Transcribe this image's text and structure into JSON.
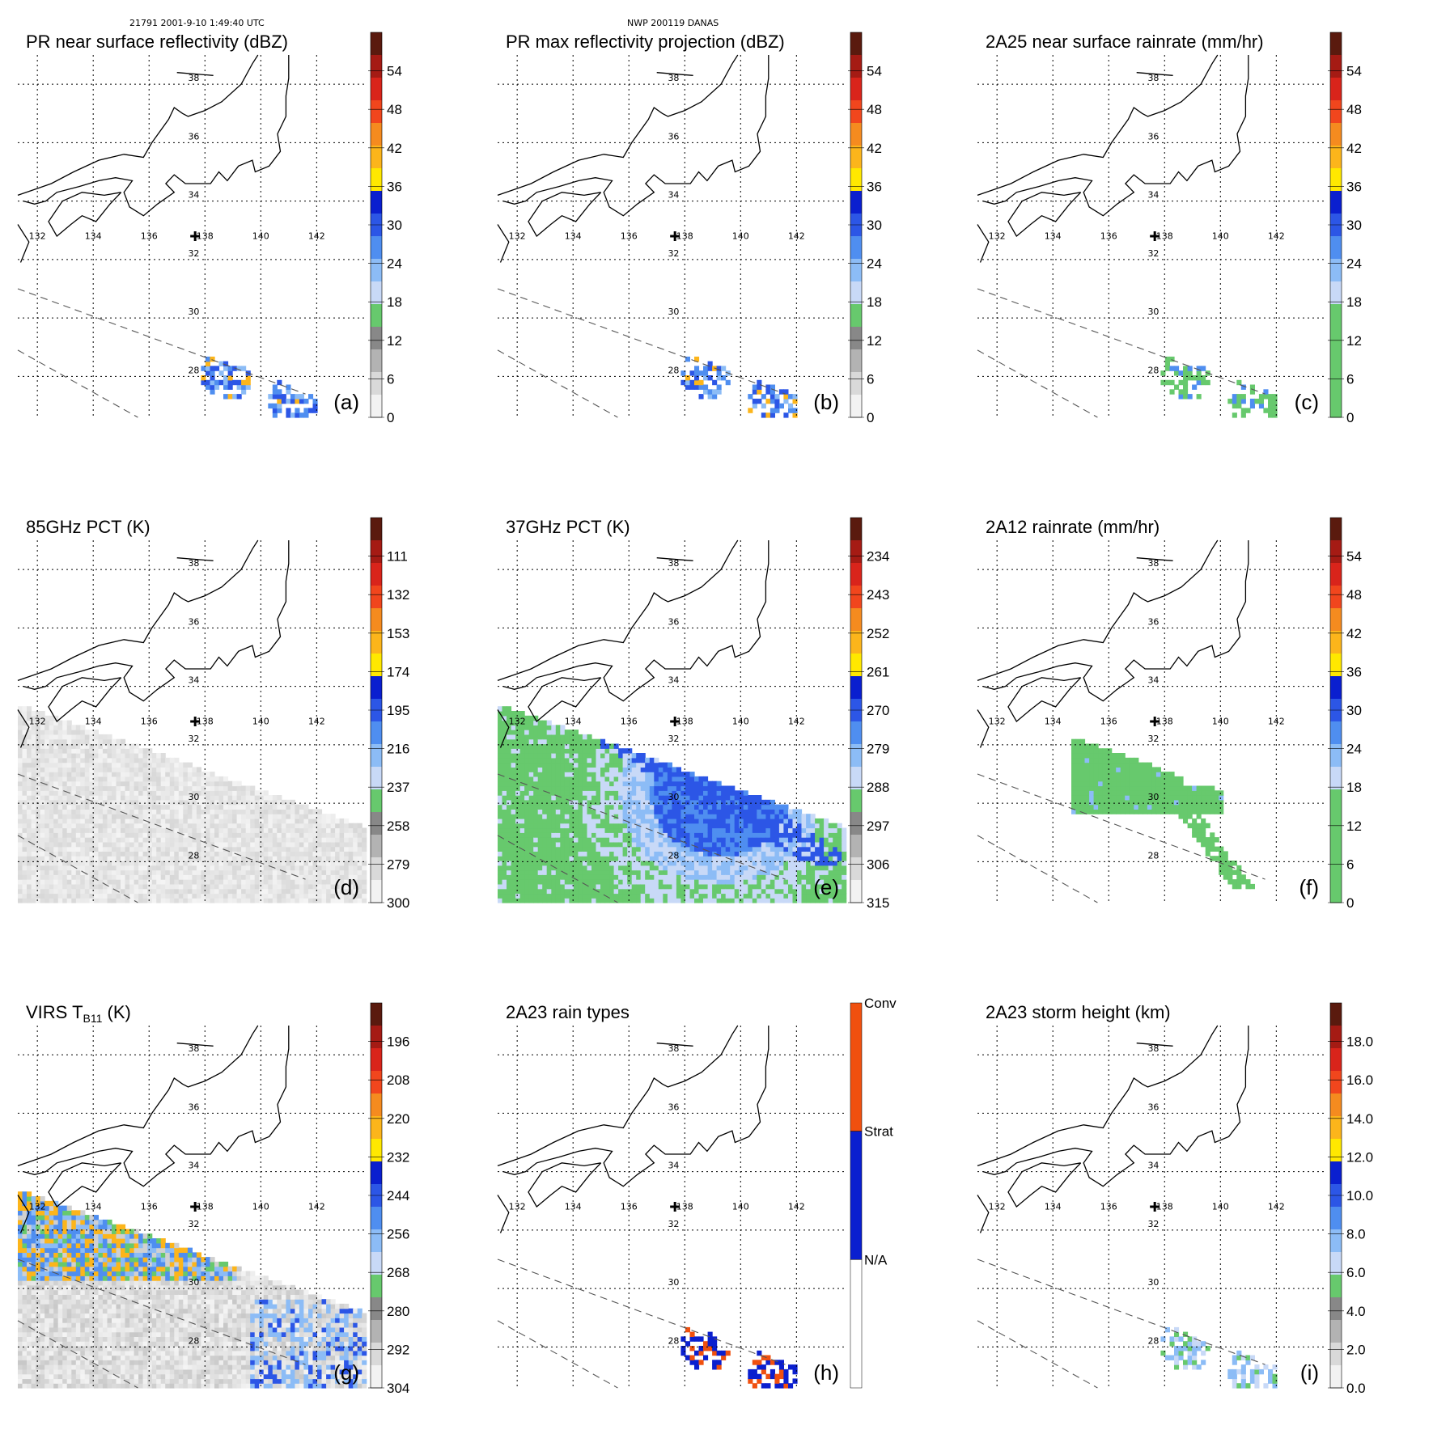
{
  "header": {
    "left": "21791 2001-9-10 1:49:40 UTC",
    "center": "NWP 200119 DANAS"
  },
  "colors": {
    "coast": "#000000",
    "grid": "#000000",
    "swath": "#555555"
  },
  "chart_data": [
    {
      "type": "heatmap",
      "id": "a",
      "title": "PR near surface reflectivity (dBZ)",
      "panel_label": "(a)",
      "colorbar": {
        "labels": [
          "54",
          "48",
          "42",
          "36",
          "30",
          "24",
          "18",
          "12",
          "6",
          "0"
        ],
        "colors": [
          "#5a1a0e",
          "#a51b14",
          "#d9241b",
          "#f1461d",
          "#f58b1f",
          "#fcb51b",
          "#ffe800",
          "#0a1fcf",
          "#2c56e6",
          "#4f8ef0",
          "#8cbcf6",
          "#c8d9f7",
          "#67c96d",
          "#888888",
          "#b3b3b3",
          "#d9d9d9",
          "#f2f2f2"
        ]
      },
      "lat_labels": [
        "38",
        "36",
        "34",
        "32",
        "30",
        "28"
      ],
      "lon_labels": [
        "132",
        "134",
        "136",
        "138",
        "140",
        "142"
      ],
      "field": "pr",
      "swath": "narrow"
    },
    {
      "type": "heatmap",
      "id": "b",
      "title": "PR max reflectivity projection (dBZ)",
      "panel_label": "(b)",
      "colorbar": {
        "labels": [
          "54",
          "48",
          "42",
          "36",
          "30",
          "24",
          "18",
          "12",
          "6",
          "0"
        ],
        "colors": [
          "#5a1a0e",
          "#a51b14",
          "#d9241b",
          "#f1461d",
          "#f58b1f",
          "#fcb51b",
          "#ffe800",
          "#0a1fcf",
          "#2c56e6",
          "#4f8ef0",
          "#8cbcf6",
          "#c8d9f7",
          "#67c96d",
          "#888888",
          "#b3b3b3",
          "#d9d9d9",
          "#f2f2f2"
        ]
      },
      "lat_labels": [
        "38",
        "36",
        "34",
        "32",
        "30",
        "28"
      ],
      "lon_labels": [
        "132",
        "134",
        "136",
        "138",
        "140",
        "142"
      ],
      "field": "pr",
      "swath": "narrow"
    },
    {
      "type": "heatmap",
      "id": "c",
      "title": "2A25 near surface rainrate (mm/hr)",
      "panel_label": "(c)",
      "colorbar": {
        "labels": [
          "54",
          "48",
          "42",
          "36",
          "30",
          "24",
          "18",
          "12",
          "6",
          "0"
        ],
        "colors": [
          "#5a1a0e",
          "#a51b14",
          "#d9241b",
          "#f1461d",
          "#f58b1f",
          "#fcb51b",
          "#ffe800",
          "#0a1fcf",
          "#2c56e6",
          "#4f8ef0",
          "#8cbcf6",
          "#c8d9f7",
          "#67c96d",
          "#67c96d",
          "#67c96d",
          "#67c96d",
          "#67c96d"
        ]
      },
      "lat_labels": [
        "38",
        "36",
        "34",
        "32",
        "30",
        "28"
      ],
      "lon_labels": [
        "132",
        "134",
        "136",
        "138",
        "140",
        "142"
      ],
      "field": "rain",
      "swath": "narrow"
    },
    {
      "type": "heatmap",
      "id": "d",
      "title": "85GHz PCT (K)",
      "panel_label": "(d)",
      "colorbar": {
        "labels": [
          "111",
          "132",
          "153",
          "174",
          "195",
          "216",
          "237",
          "258",
          "279",
          "300"
        ],
        "colors": [
          "#5a1a0e",
          "#a51b14",
          "#d9241b",
          "#f1461d",
          "#f58b1f",
          "#fcb51b",
          "#ffe800",
          "#0a1fcf",
          "#2c56e6",
          "#4f8ef0",
          "#8cbcf6",
          "#c8d9f7",
          "#67c96d",
          "#888888",
          "#b3b3b3",
          "#d9d9d9",
          "#f2f2f2"
        ]
      },
      "lat_labels": [
        "38",
        "36",
        "34",
        "32",
        "30",
        "28"
      ],
      "lon_labels": [
        "132",
        "134",
        "136",
        "138",
        "140",
        "142"
      ],
      "field": "pct85",
      "swath": "wide"
    },
    {
      "type": "heatmap",
      "id": "e",
      "title": "37GHz PCT (K)",
      "panel_label": "(e)",
      "colorbar": {
        "labels": [
          "234",
          "243",
          "252",
          "261",
          "270",
          "279",
          "288",
          "297",
          "306",
          "315"
        ],
        "colors": [
          "#5a1a0e",
          "#a51b14",
          "#d9241b",
          "#f1461d",
          "#f58b1f",
          "#fcb51b",
          "#ffe800",
          "#0a1fcf",
          "#2c56e6",
          "#4f8ef0",
          "#8cbcf6",
          "#c8d9f7",
          "#67c96d",
          "#888888",
          "#b3b3b3",
          "#d9d9d9",
          "#f2f2f2"
        ]
      },
      "lat_labels": [
        "38",
        "36",
        "34",
        "32",
        "30",
        "28"
      ],
      "lon_labels": [
        "132",
        "134",
        "136",
        "138",
        "140",
        "142"
      ],
      "field": "pct37",
      "swath": "wide"
    },
    {
      "type": "heatmap",
      "id": "f",
      "title": "2A12 rainrate (mm/hr)",
      "panel_label": "(f)",
      "colorbar": {
        "labels": [
          "54",
          "48",
          "42",
          "36",
          "30",
          "24",
          "18",
          "12",
          "6",
          "0"
        ],
        "colors": [
          "#5a1a0e",
          "#a51b14",
          "#d9241b",
          "#f1461d",
          "#f58b1f",
          "#fcb51b",
          "#ffe800",
          "#0a1fcf",
          "#2c56e6",
          "#4f8ef0",
          "#8cbcf6",
          "#c8d9f7",
          "#67c96d",
          "#67c96d",
          "#67c96d",
          "#67c96d",
          "#67c96d"
        ]
      },
      "lat_labels": [
        "38",
        "36",
        "34",
        "32",
        "30",
        "28"
      ],
      "lon_labels": [
        "132",
        "134",
        "136",
        "138",
        "140",
        "142"
      ],
      "field": "tmi_rain",
      "swath": "wide"
    },
    {
      "type": "heatmap",
      "id": "g",
      "title": "VIRS T",
      "title_sub": "B11",
      "title_tail": " (K)",
      "panel_label": "(g)",
      "colorbar": {
        "labels": [
          "196",
          "208",
          "220",
          "232",
          "244",
          "256",
          "268",
          "280",
          "292",
          "304"
        ],
        "colors": [
          "#5a1a0e",
          "#a51b14",
          "#d9241b",
          "#f1461d",
          "#f58b1f",
          "#fcb51b",
          "#ffe800",
          "#0a1fcf",
          "#2c56e6",
          "#4f8ef0",
          "#8cbcf6",
          "#c8d9f7",
          "#67c96d",
          "#888888",
          "#b3b3b3",
          "#d9d9d9",
          "#f2f2f2"
        ]
      },
      "lat_labels": [
        "38",
        "36",
        "34",
        "32",
        "30",
        "28"
      ],
      "lon_labels": [
        "132",
        "134",
        "136",
        "138",
        "140",
        "142"
      ],
      "field": "virs",
      "swath": "wide"
    },
    {
      "type": "heatmap",
      "id": "h",
      "title": "2A23 rain types",
      "panel_label": "(h)",
      "colorbar": {
        "categories": [
          "Conv",
          "Strat",
          "N/A"
        ],
        "colors": [
          "#f0500f",
          "#0a1fcf",
          "#ffffff"
        ]
      },
      "lat_labels": [
        "38",
        "36",
        "34",
        "32",
        "30",
        "28"
      ],
      "lon_labels": [
        "132",
        "134",
        "136",
        "138",
        "140",
        "142"
      ],
      "field": "types",
      "swath": "narrow"
    },
    {
      "type": "heatmap",
      "id": "i",
      "title": "2A23 storm height (km)",
      "panel_label": "(i)",
      "colorbar": {
        "labels": [
          "18.0",
          "16.0",
          "14.0",
          "12.0",
          "10.0",
          "8.0",
          "6.0",
          "4.0",
          "2.0",
          "0.0"
        ],
        "colors": [
          "#5a1a0e",
          "#a51b14",
          "#d9241b",
          "#f1461d",
          "#f58b1f",
          "#fcb51b",
          "#ffe800",
          "#0a1fcf",
          "#2c56e6",
          "#4f8ef0",
          "#8cbcf6",
          "#c8d9f7",
          "#67c96d",
          "#888888",
          "#b3b3b3",
          "#d9d9d9",
          "#f2f2f2"
        ]
      },
      "lat_labels": [
        "38",
        "36",
        "34",
        "32",
        "30",
        "28"
      ],
      "lon_labels": [
        "132",
        "134",
        "136",
        "138",
        "140",
        "142"
      ],
      "field": "height",
      "swath": "narrow"
    }
  ]
}
